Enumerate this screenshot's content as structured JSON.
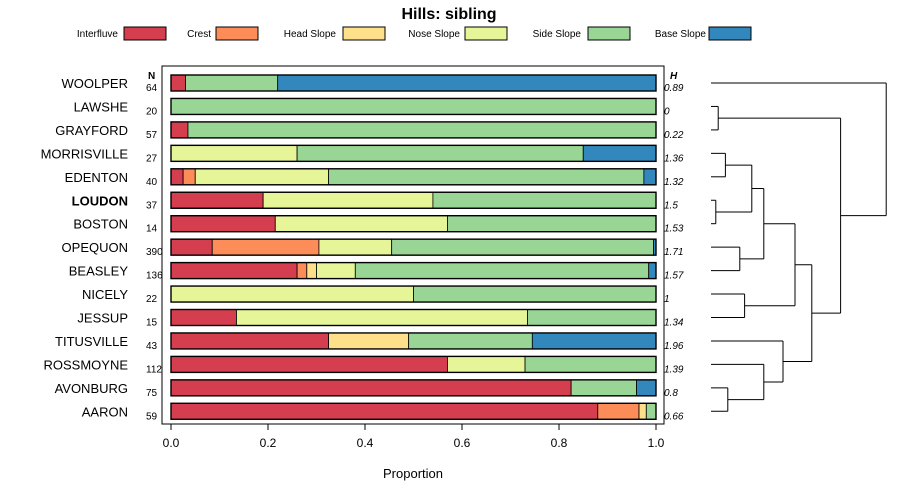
{
  "chart_data": {
    "type": "bar",
    "stacked": "proportion",
    "orientation": "horizontal",
    "title": "Hills: sibling",
    "xlabel": "Proportion",
    "xlim": [
      0,
      1
    ],
    "xticks": [
      "0.0",
      "0.2",
      "0.4",
      "0.6",
      "0.8",
      "1.0"
    ],
    "xtick_values": [
      0,
      0.2,
      0.4,
      0.6,
      0.8,
      1.0
    ],
    "n_header": "N",
    "h_header": "H",
    "highlighted": "LOUDON",
    "legend": [
      {
        "name": "Interfluve",
        "color": "#d53e4f"
      },
      {
        "name": "Crest",
        "color": "#fc8d59"
      },
      {
        "name": "Head Slope",
        "color": "#fee08b"
      },
      {
        "name": "Nose Slope",
        "color": "#e6f598"
      },
      {
        "name": "Side Slope",
        "color": "#99d594"
      },
      {
        "name": "Base Slope",
        "color": "#3288bd"
      }
    ],
    "categories": [
      "WOOLPER",
      "LAWSHE",
      "GRAYFORD",
      "MORRISVILLE",
      "EDENTON",
      "LOUDON",
      "BOSTON",
      "OPEQUON",
      "BEASLEY",
      "NICELY",
      "JESSUP",
      "TITUSVILLE",
      "ROSSMOYNE",
      "AVONBURG",
      "AARON"
    ],
    "n": [
      "64",
      "20",
      "57",
      "27",
      "40",
      "37",
      "14",
      "390",
      "136",
      "22",
      "15",
      "43",
      "112",
      "75",
      "59"
    ],
    "h": [
      "0.89",
      "0",
      "0.22",
      "1.36",
      "1.32",
      "1.5",
      "1.53",
      "1.71",
      "1.57",
      "1",
      "1.34",
      "1.96",
      "1.39",
      "0.8",
      "0.66"
    ],
    "series": [
      {
        "name": "Interfluve",
        "values": [
          0.03,
          0,
          0.035,
          0,
          0.025,
          0.19,
          0.215,
          0.085,
          0.26,
          0,
          0.135,
          0.325,
          0.57,
          0.825,
          0.88
        ]
      },
      {
        "name": "Crest",
        "values": [
          0,
          0,
          0,
          0,
          0.025,
          0,
          0,
          0.22,
          0.02,
          0,
          0,
          0,
          0,
          0,
          0.085
        ]
      },
      {
        "name": "Head Slope",
        "values": [
          0,
          0,
          0,
          0,
          0,
          0,
          0,
          0,
          0.02,
          0,
          0,
          0.165,
          0,
          0,
          0.015
        ]
      },
      {
        "name": "Nose Slope",
        "values": [
          0,
          0,
          0,
          0.26,
          0.275,
          0.35,
          0.355,
          0.15,
          0.08,
          0.5,
          0.6,
          0,
          0.16,
          0,
          0
        ]
      },
      {
        "name": "Side Slope",
        "values": [
          0.19,
          1,
          0.965,
          0.59,
          0.65,
          0.46,
          0.43,
          0.54,
          0.605,
          0.5,
          0.265,
          0.255,
          0.27,
          0.135,
          0.02
        ]
      },
      {
        "name": "Base Slope",
        "values": [
          0.78,
          0,
          0,
          0.15,
          0.025,
          0,
          0,
          0.005,
          0.015,
          0,
          0,
          0.255,
          0,
          0.04,
          0
        ]
      }
    ],
    "dendrogram": {
      "leaves": [
        "WOOLPER",
        "LAWSHE",
        "GRAYFORD",
        "MORRISVILLE",
        "EDENTON",
        "LOUDON",
        "BOSTON",
        "OPEQUON",
        "BEASLEY",
        "NICELY",
        "JESSUP",
        "TITUSVILLE",
        "ROSSMOYNE",
        "AVONBURG",
        "AARON"
      ],
      "merges": [
        {
          "a": "LAWSHE",
          "b": "GRAYFORD",
          "height": 0.03
        },
        {
          "a": "MORRISVILLE",
          "b": "EDENTON",
          "height": 0.06
        },
        {
          "a": "LOUDON",
          "b": "BOSTON",
          "height": 0.02
        },
        {
          "a": "OPEQUON",
          "b": "BEASLEY",
          "height": 0.12
        },
        {
          "a": "NICELY",
          "b": "JESSUP",
          "height": 0.14
        },
        {
          "a": "AVONBURG",
          "b": "AARON",
          "height": 0.07
        },
        {
          "a": "ROSSMOYNE",
          "b": "AVONBURG+AARON",
          "height": 0.22
        },
        {
          "a": "TITUSVILLE",
          "b": "ROSSMOYNE+AVONBURG+AARON",
          "height": 0.3
        },
        {
          "a": "MORRISVILLE+EDENTON",
          "b": "LOUDON+BOSTON",
          "height": 0.17
        },
        {
          "a": "MORRISVILLE+EDENTON+LOUDON+BOSTON",
          "b": "OPEQUON+BEASLEY",
          "height": 0.22
        },
        {
          "a": "MORRISVILLE..BEASLEY",
          "b": "NICELY+JESSUP",
          "height": 0.35
        },
        {
          "a": "MORRISVILLE..JESSUP",
          "b": "TITUSVILLE..AARON",
          "height": 0.42
        },
        {
          "a": "LAWSHE+GRAYFORD",
          "b": "MORRISVILLE..AARON",
          "height": 0.54
        },
        {
          "a": "WOOLPER",
          "b": "LAWSHE..AARON",
          "height": 0.73
        }
      ]
    }
  }
}
